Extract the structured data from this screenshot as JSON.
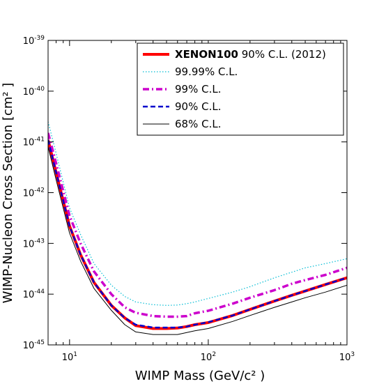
{
  "chart_data": {
    "type": "line",
    "xlabel": "WIMP Mass (GeV/c² )",
    "ylabel": "WIMP-Nucleon Cross Section [cm² ]",
    "xscale": "log",
    "yscale": "log",
    "xlim": [
      7,
      1000
    ],
    "ylim": [
      1e-45,
      1e-39
    ],
    "x_ticks": [
      {
        "base": "10",
        "exp": "1",
        "value": 10
      },
      {
        "base": "10",
        "exp": "2",
        "value": 100
      },
      {
        "base": "10",
        "exp": "3",
        "value": 1000
      }
    ],
    "y_ticks": [
      {
        "base": "10",
        "exp": "-45",
        "value": 1e-45
      },
      {
        "base": "10",
        "exp": "-44",
        "value": 1e-44
      },
      {
        "base": "10",
        "exp": "-43",
        "value": 1e-43
      },
      {
        "base": "10",
        "exp": "-42",
        "value": 1e-42
      },
      {
        "base": "10",
        "exp": "-41",
        "value": 1e-41
      },
      {
        "base": "10",
        "exp": "-40",
        "value": 1e-40
      },
      {
        "base": "10",
        "exp": "-39",
        "value": 1e-39
      }
    ],
    "legend_position": "top-right",
    "grid": false,
    "series": [
      {
        "name": "XENON100 90% C.L. (2012)",
        "color": "#ff0000",
        "style": "solid-thick",
        "x": [
          7,
          8,
          10,
          12,
          15,
          20,
          25,
          30,
          40,
          50,
          60,
          70,
          80,
          100,
          150,
          200,
          300,
          400,
          500,
          700,
          1000
        ],
        "y": [
          1.1e-41,
          2.5e-42,
          2.2e-43,
          6e-44,
          1.7e-44,
          6e-45,
          3.4e-45,
          2.4e-45,
          2.1e-45,
          2.1e-45,
          2.15e-45,
          2.3e-45,
          2.5e-45,
          2.75e-45,
          3.8e-45,
          5e-45,
          7.3e-45,
          9.5e-45,
          1.15e-44,
          1.55e-44,
          2.1e-44
        ]
      },
      {
        "name": "99.99% C.L.",
        "color": "#00bcd4",
        "style": "dotted",
        "x": [
          7,
          8,
          10,
          12,
          15,
          20,
          25,
          30,
          40,
          50,
          60,
          70,
          80,
          100,
          150,
          200,
          300,
          400,
          500,
          700,
          1000
        ],
        "y": [
          2.5e-41,
          6e-42,
          5e-43,
          1.5e-43,
          4e-44,
          1.5e-44,
          9e-45,
          7e-45,
          6.2e-45,
          6e-45,
          6.1e-45,
          6.5e-45,
          7e-45,
          8.2e-45,
          1.1e-44,
          1.4e-44,
          2.1e-44,
          2.7e-44,
          3.3e-44,
          4e-44,
          5e-44
        ]
      },
      {
        "name": "99% C.L.",
        "color": "#cc00cc",
        "style": "dash-dot",
        "x": [
          7,
          8,
          10,
          12,
          15,
          20,
          25,
          30,
          40,
          50,
          60,
          70,
          80,
          100,
          150,
          200,
          300,
          400,
          500,
          700,
          1000
        ],
        "y": [
          1.5e-41,
          3.8e-42,
          3.5e-43,
          1e-43,
          2.8e-44,
          1e-44,
          5.5e-45,
          4.3e-45,
          3.7e-45,
          3.6e-45,
          3.6e-45,
          3.7e-45,
          4.2e-45,
          4.7e-45,
          6.5e-45,
          8.5e-45,
          1.2e-44,
          1.6e-44,
          1.9e-44,
          2.4e-44,
          3.3e-44
        ]
      },
      {
        "name": "90% C.L.",
        "color": "#0000cc",
        "style": "dashed",
        "x": [
          7,
          8,
          10,
          12,
          15,
          20,
          25,
          30,
          40,
          50,
          60,
          70,
          80,
          100,
          150,
          200,
          300,
          400,
          500,
          700,
          1000
        ],
        "y": [
          1.1e-41,
          2.5e-42,
          2.2e-43,
          6e-44,
          1.7e-44,
          6e-45,
          3.4e-45,
          2.5e-45,
          2.2e-45,
          2.2e-45,
          2.2e-45,
          2.3e-45,
          2.5e-45,
          2.8e-45,
          3.8e-45,
          5e-45,
          7.3e-45,
          9.5e-45,
          1.15e-44,
          1.55e-44,
          2.1e-44
        ]
      },
      {
        "name": "68% C.L.",
        "color": "#000000",
        "style": "solid-thin",
        "x": [
          7,
          8,
          10,
          12,
          15,
          20,
          25,
          30,
          40,
          50,
          60,
          70,
          80,
          100,
          150,
          200,
          300,
          400,
          500,
          700,
          1000
        ],
        "y": [
          8e-42,
          1.8e-42,
          1.6e-43,
          4.5e-44,
          1.3e-44,
          4.8e-45,
          2.5e-45,
          1.8e-45,
          1.6e-45,
          1.6e-45,
          1.6e-45,
          1.75e-45,
          1.9e-45,
          2.1e-45,
          2.9e-45,
          3.8e-45,
          5.5e-45,
          7e-45,
          8.5e-45,
          1.1e-44,
          1.5e-44
        ]
      }
    ],
    "legend_labels": [
      {
        "bold": "XENON100",
        "rest": " 90% C.L. (2012)"
      },
      {
        "bold": "",
        "rest": "99.99% C.L."
      },
      {
        "bold": "",
        "rest": "99% C.L."
      },
      {
        "bold": "",
        "rest": "90% C.L."
      },
      {
        "bold": "",
        "rest": "68% C.L."
      }
    ]
  }
}
